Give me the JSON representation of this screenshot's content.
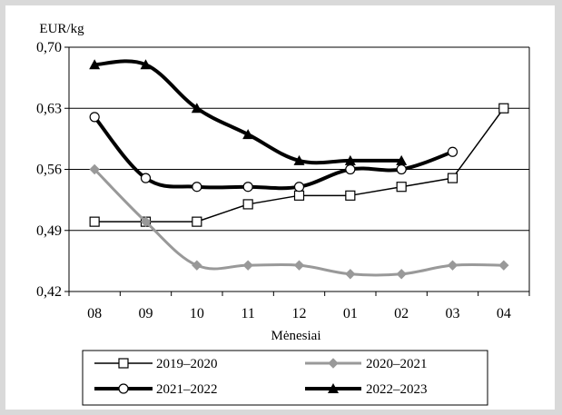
{
  "chart_data": {
    "type": "line",
    "ylabel": "EUR/kg",
    "xlabel": "Mėnesiai",
    "categories": [
      "08",
      "09",
      "10",
      "11",
      "12",
      "01",
      "02",
      "03",
      "04"
    ],
    "ylim": [
      0.42,
      0.7
    ],
    "yticks": [
      0.42,
      0.49,
      0.56,
      0.63,
      0.7
    ],
    "ytick_labels": [
      "0,42",
      "0,49",
      "0,56",
      "0,63",
      "0,70"
    ],
    "grid": true,
    "legend_position": "bottom",
    "series": [
      {
        "name": "2019–2020",
        "values": [
          0.5,
          0.5,
          0.5,
          0.52,
          0.53,
          0.53,
          0.54,
          0.55,
          0.63
        ],
        "color": "#000000",
        "marker": "square",
        "width": 1.5,
        "smooth": false
      },
      {
        "name": "2020–2021",
        "values": [
          0.56,
          0.5,
          0.45,
          0.45,
          0.45,
          0.44,
          0.44,
          0.45,
          0.45
        ],
        "color": "#999999",
        "marker": "diamond",
        "width": 3,
        "smooth": true
      },
      {
        "name": "2021–2022",
        "values": [
          0.62,
          0.55,
          0.54,
          0.54,
          0.54,
          0.56,
          0.56,
          0.58,
          null
        ],
        "color": "#000000",
        "marker": "circle",
        "width": 4,
        "smooth": true
      },
      {
        "name": "2022–2023",
        "values": [
          0.68,
          0.68,
          0.63,
          0.6,
          0.57,
          0.57,
          0.57,
          null,
          null
        ],
        "color": "#000000",
        "marker": "triangle",
        "width": 4,
        "smooth": true
      }
    ]
  }
}
